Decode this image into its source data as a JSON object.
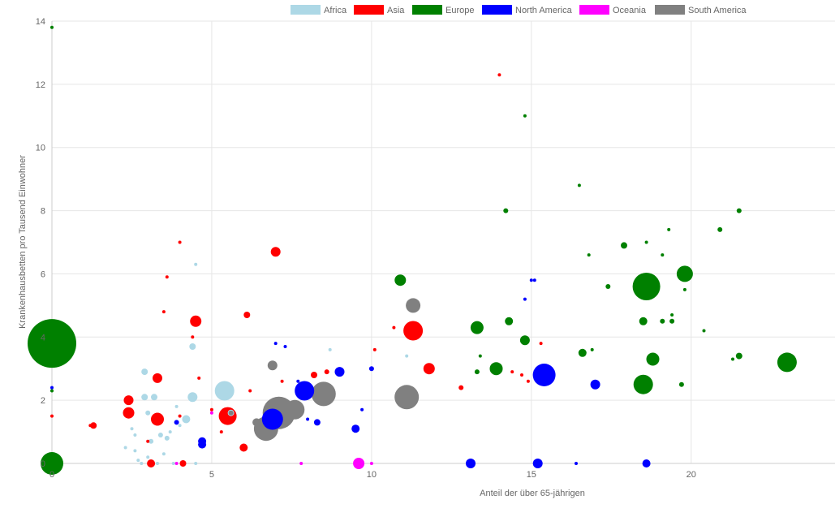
{
  "chart_data": {
    "type": "scatter",
    "title": "",
    "xlabel": "Anteil der über 65-jährigen",
    "ylabel": "Krankenhausbetten pro Tausend Einwohner",
    "xlim": [
      0,
      24.5
    ],
    "ylim": [
      0,
      14
    ],
    "xticks": [
      0,
      5,
      10,
      15,
      20
    ],
    "yticks": [
      0,
      2,
      4,
      6,
      8,
      10,
      12,
      14
    ],
    "grid": true,
    "legend_position": "top-center",
    "series": [
      {
        "name": "Africa",
        "color": "#add8e6",
        "points": [
          {
            "x": 5.4,
            "y": 2.3,
            "size": 12
          },
          {
            "x": 4.5,
            "y": 6.3,
            "size": 2
          },
          {
            "x": 4.4,
            "y": 3.7,
            "size": 4
          },
          {
            "x": 4.4,
            "y": 2.1,
            "size": 6
          },
          {
            "x": 4.2,
            "y": 1.4,
            "size": 5
          },
          {
            "x": 2.9,
            "y": 2.9,
            "size": 4
          },
          {
            "x": 2.9,
            "y": 2.1,
            "size": 4
          },
          {
            "x": 3.2,
            "y": 2.1,
            "size": 4
          },
          {
            "x": 3.0,
            "y": 1.6,
            "size": 3
          },
          {
            "x": 2.5,
            "y": 1.1,
            "size": 2
          },
          {
            "x": 3.4,
            "y": 0.9,
            "size": 3
          },
          {
            "x": 3.6,
            "y": 0.8,
            "size": 3
          },
          {
            "x": 3.1,
            "y": 0.7,
            "size": 3
          },
          {
            "x": 2.3,
            "y": 0.5,
            "size": 2
          },
          {
            "x": 2.6,
            "y": 0.4,
            "size": 2
          },
          {
            "x": 3.7,
            "y": 1.0,
            "size": 2
          },
          {
            "x": 3.9,
            "y": 1.8,
            "size": 2
          },
          {
            "x": 4.0,
            "y": 1.2,
            "size": 2
          },
          {
            "x": 3.0,
            "y": 0.2,
            "size": 2
          },
          {
            "x": 2.7,
            "y": 0.1,
            "size": 2
          },
          {
            "x": 3.3,
            "y": 0.0,
            "size": 2
          },
          {
            "x": 3.8,
            "y": 0.0,
            "size": 2
          },
          {
            "x": 2.8,
            "y": 0.0,
            "size": 2
          },
          {
            "x": 4.5,
            "y": 0.0,
            "size": 2
          },
          {
            "x": 5.6,
            "y": 1.6,
            "size": 4
          },
          {
            "x": 8.7,
            "y": 3.6,
            "size": 2
          },
          {
            "x": 11.1,
            "y": 3.4,
            "size": 2
          },
          {
            "x": 2.6,
            "y": 0.9,
            "size": 2
          },
          {
            "x": 3.5,
            "y": 0.3,
            "size": 2
          }
        ]
      },
      {
        "name": "Asia",
        "color": "#ff0000",
        "points": [
          {
            "x": 11.3,
            "y": 4.2,
            "size": 12
          },
          {
            "x": 5.5,
            "y": 1.5,
            "size": 11
          },
          {
            "x": 7.0,
            "y": 6.7,
            "size": 6
          },
          {
            "x": 4.5,
            "y": 4.5,
            "size": 7
          },
          {
            "x": 3.3,
            "y": 1.4,
            "size": 8
          },
          {
            "x": 2.4,
            "y": 2.0,
            "size": 6
          },
          {
            "x": 2.4,
            "y": 1.6,
            "size": 7
          },
          {
            "x": 3.3,
            "y": 2.7,
            "size": 6
          },
          {
            "x": 11.8,
            "y": 3.0,
            "size": 7
          },
          {
            "x": 6.1,
            "y": 4.7,
            "size": 4
          },
          {
            "x": 3.5,
            "y": 4.8,
            "size": 2
          },
          {
            "x": 3.6,
            "y": 5.9,
            "size": 2
          },
          {
            "x": 4.0,
            "y": 7.0,
            "size": 2
          },
          {
            "x": 14.0,
            "y": 12.3,
            "size": 2
          },
          {
            "x": 1.3,
            "y": 1.2,
            "size": 4
          },
          {
            "x": 1.2,
            "y": 1.2,
            "size": 2
          },
          {
            "x": 6.0,
            "y": 0.5,
            "size": 5
          },
          {
            "x": 3.1,
            "y": 0.0,
            "size": 5
          },
          {
            "x": 4.1,
            "y": 0.0,
            "size": 4
          },
          {
            "x": 8.2,
            "y": 2.8,
            "size": 4
          },
          {
            "x": 8.6,
            "y": 2.9,
            "size": 3
          },
          {
            "x": 12.8,
            "y": 2.4,
            "size": 3
          },
          {
            "x": 4.6,
            "y": 2.7,
            "size": 2
          },
          {
            "x": 7.2,
            "y": 2.6,
            "size": 2
          },
          {
            "x": 10.7,
            "y": 4.3,
            "size": 2
          },
          {
            "x": 10.1,
            "y": 3.6,
            "size": 2
          },
          {
            "x": 14.9,
            "y": 2.6,
            "size": 2
          },
          {
            "x": 15.3,
            "y": 3.8,
            "size": 2
          },
          {
            "x": 14.7,
            "y": 2.8,
            "size": 2
          },
          {
            "x": 14.4,
            "y": 2.9,
            "size": 2
          },
          {
            "x": 0.0,
            "y": 1.5,
            "size": 2
          },
          {
            "x": 4.4,
            "y": 4.0,
            "size": 2
          },
          {
            "x": 5.3,
            "y": 1.0,
            "size": 2
          },
          {
            "x": 5.0,
            "y": 1.7,
            "size": 2
          },
          {
            "x": 6.2,
            "y": 2.3,
            "size": 2
          },
          {
            "x": 4.0,
            "y": 1.5,
            "size": 2
          },
          {
            "x": 3.0,
            "y": 0.7,
            "size": 2
          }
        ]
      },
      {
        "name": "Europe",
        "color": "#008000",
        "points": [
          {
            "x": 0.0,
            "y": 3.8,
            "size": 30
          },
          {
            "x": 0.0,
            "y": 0.0,
            "size": 14
          },
          {
            "x": 18.6,
            "y": 5.6,
            "size": 17
          },
          {
            "x": 19.8,
            "y": 6.0,
            "size": 10
          },
          {
            "x": 23.0,
            "y": 3.2,
            "size": 12
          },
          {
            "x": 18.5,
            "y": 2.5,
            "size": 12
          },
          {
            "x": 13.3,
            "y": 4.3,
            "size": 8
          },
          {
            "x": 10.9,
            "y": 5.8,
            "size": 7
          },
          {
            "x": 13.9,
            "y": 3.0,
            "size": 8
          },
          {
            "x": 18.8,
            "y": 3.3,
            "size": 8
          },
          {
            "x": 14.8,
            "y": 3.9,
            "size": 6
          },
          {
            "x": 14.3,
            "y": 4.5,
            "size": 5
          },
          {
            "x": 17.9,
            "y": 6.9,
            "size": 4
          },
          {
            "x": 16.6,
            "y": 3.5,
            "size": 5
          },
          {
            "x": 18.5,
            "y": 4.5,
            "size": 5
          },
          {
            "x": 21.5,
            "y": 3.4,
            "size": 4
          },
          {
            "x": 14.2,
            "y": 8.0,
            "size": 3
          },
          {
            "x": 21.5,
            "y": 8.0,
            "size": 3
          },
          {
            "x": 20.9,
            "y": 7.4,
            "size": 3
          },
          {
            "x": 16.5,
            "y": 8.8,
            "size": 2
          },
          {
            "x": 14.8,
            "y": 11.0,
            "size": 2
          },
          {
            "x": 17.4,
            "y": 5.6,
            "size": 3
          },
          {
            "x": 19.7,
            "y": 2.5,
            "size": 3
          },
          {
            "x": 13.3,
            "y": 2.9,
            "size": 3
          },
          {
            "x": 19.4,
            "y": 4.5,
            "size": 3
          },
          {
            "x": 19.1,
            "y": 4.5,
            "size": 3
          },
          {
            "x": 19.8,
            "y": 5.5,
            "size": 2
          },
          {
            "x": 19.1,
            "y": 6.6,
            "size": 2
          },
          {
            "x": 19.3,
            "y": 7.4,
            "size": 2
          },
          {
            "x": 18.6,
            "y": 7.0,
            "size": 2
          },
          {
            "x": 16.8,
            "y": 6.6,
            "size": 2
          },
          {
            "x": 16.9,
            "y": 3.6,
            "size": 2
          },
          {
            "x": 21.3,
            "y": 3.3,
            "size": 2
          },
          {
            "x": 20.4,
            "y": 4.2,
            "size": 2
          },
          {
            "x": 13.4,
            "y": 3.4,
            "size": 2
          },
          {
            "x": 19.4,
            "y": 4.7,
            "size": 2
          },
          {
            "x": 0.0,
            "y": 13.8,
            "size": 2
          },
          {
            "x": 0.0,
            "y": 2.3,
            "size": 2
          }
        ]
      },
      {
        "name": "North America",
        "color": "#0000ff",
        "points": [
          {
            "x": 15.4,
            "y": 2.8,
            "size": 14
          },
          {
            "x": 7.9,
            "y": 2.3,
            "size": 12
          },
          {
            "x": 6.9,
            "y": 1.4,
            "size": 13
          },
          {
            "x": 9.0,
            "y": 2.9,
            "size": 6
          },
          {
            "x": 17.0,
            "y": 2.5,
            "size": 6
          },
          {
            "x": 13.1,
            "y": 0.0,
            "size": 6
          },
          {
            "x": 15.2,
            "y": 0.0,
            "size": 6
          },
          {
            "x": 18.6,
            "y": 0.0,
            "size": 5
          },
          {
            "x": 9.5,
            "y": 1.1,
            "size": 5
          },
          {
            "x": 8.3,
            "y": 1.3,
            "size": 4
          },
          {
            "x": 4.7,
            "y": 0.7,
            "size": 5
          },
          {
            "x": 4.7,
            "y": 0.6,
            "size": 5
          },
          {
            "x": 3.9,
            "y": 1.3,
            "size": 3
          },
          {
            "x": 10.0,
            "y": 3.0,
            "size": 3
          },
          {
            "x": 7.0,
            "y": 3.8,
            "size": 2
          },
          {
            "x": 7.3,
            "y": 3.7,
            "size": 2
          },
          {
            "x": 15.0,
            "y": 5.8,
            "size": 2
          },
          {
            "x": 15.1,
            "y": 5.8,
            "size": 2
          },
          {
            "x": 14.8,
            "y": 5.2,
            "size": 2
          },
          {
            "x": 16.4,
            "y": 0.0,
            "size": 2
          },
          {
            "x": 9.7,
            "y": 1.7,
            "size": 2
          },
          {
            "x": 0.0,
            "y": 2.4,
            "size": 2
          },
          {
            "x": 8.0,
            "y": 1.4,
            "size": 2
          },
          {
            "x": 7.7,
            "y": 2.6,
            "size": 2
          }
        ]
      },
      {
        "name": "Oceania",
        "color": "#ff00ff",
        "points": [
          {
            "x": 9.6,
            "y": 0.0,
            "size": 7
          },
          {
            "x": 3.9,
            "y": 0.0,
            "size": 2
          },
          {
            "x": 7.8,
            "y": 0.0,
            "size": 2
          },
          {
            "x": 10.0,
            "y": 0.0,
            "size": 2
          },
          {
            "x": 5.0,
            "y": 1.6,
            "size": 2
          }
        ]
      },
      {
        "name": "South America",
        "color": "#808080",
        "points": [
          {
            "x": 7.1,
            "y": 1.6,
            "size": 20
          },
          {
            "x": 8.5,
            "y": 2.2,
            "size": 15
          },
          {
            "x": 11.1,
            "y": 2.1,
            "size": 15
          },
          {
            "x": 6.7,
            "y": 1.1,
            "size": 15
          },
          {
            "x": 7.6,
            "y": 1.7,
            "size": 12
          },
          {
            "x": 11.3,
            "y": 5.0,
            "size": 9
          },
          {
            "x": 6.9,
            "y": 3.1,
            "size": 6
          },
          {
            "x": 6.4,
            "y": 1.3,
            "size": 5
          },
          {
            "x": 5.6,
            "y": 1.6,
            "size": 3
          }
        ]
      }
    ]
  }
}
